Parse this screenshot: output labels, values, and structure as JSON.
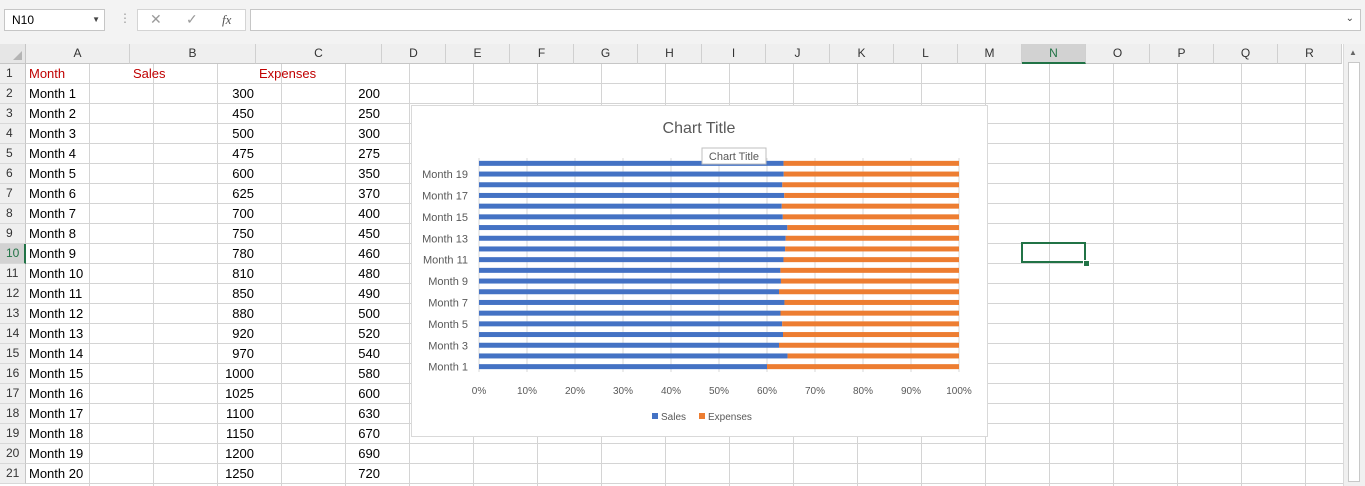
{
  "formula_bar": {
    "name_box": "N10",
    "cancel_icon": "✕",
    "enter_icon": "✓",
    "function_icon": "fx",
    "formula": ""
  },
  "columns": [
    "A",
    "B",
    "C",
    "D",
    "E",
    "F",
    "G",
    "H",
    "I",
    "J",
    "K",
    "L",
    "M",
    "N",
    "O",
    "P",
    "Q",
    "R"
  ],
  "selected_column": "N",
  "selected_row": 10,
  "rows": [
    1,
    2,
    3,
    4,
    5,
    6,
    7,
    8,
    9,
    10,
    11,
    12,
    13,
    14,
    15,
    16,
    17,
    18,
    19,
    20,
    21
  ],
  "header_color": "#c00000",
  "sheet": {
    "headers": [
      "Month",
      "Sales",
      "Expenses"
    ],
    "data": [
      [
        "Month 1",
        "300",
        "200"
      ],
      [
        "Month 2",
        "450",
        "250"
      ],
      [
        "Month 3",
        "500",
        "300"
      ],
      [
        "Month 4",
        "475",
        "275"
      ],
      [
        "Month 5",
        "600",
        "350"
      ],
      [
        "Month 6",
        "625",
        "370"
      ],
      [
        "Month 7",
        "700",
        "400"
      ],
      [
        "Month 8",
        "750",
        "450"
      ],
      [
        "Month 9",
        "780",
        "460"
      ],
      [
        "Month 10",
        "810",
        "480"
      ],
      [
        "Month 11",
        "850",
        "490"
      ],
      [
        "Month 12",
        "880",
        "500"
      ],
      [
        "Month 13",
        "920",
        "520"
      ],
      [
        "Month 14",
        "970",
        "540"
      ],
      [
        "Month 15",
        "1000",
        "580"
      ],
      [
        "Month 16",
        "1025",
        "600"
      ],
      [
        "Month 17",
        "1100",
        "630"
      ],
      [
        "Month 18",
        "1150",
        "670"
      ],
      [
        "Month 19",
        "1200",
        "690"
      ],
      [
        "Month 20",
        "1250",
        "720"
      ]
    ]
  },
  "chart_data": {
    "type": "bar",
    "orientation": "horizontal",
    "stacked": "100%",
    "title": "Chart Title",
    "tooltip": "Chart Title",
    "categories": [
      "Month 1",
      "Month 2",
      "Month 3",
      "Month 4",
      "Month 5",
      "Month 6",
      "Month 7",
      "Month 8",
      "Month 9",
      "Month 10",
      "Month 11",
      "Month 12",
      "Month 13",
      "Month 14",
      "Month 15",
      "Month 16",
      "Month 17",
      "Month 18",
      "Month 19",
      "Month 20"
    ],
    "category_labels_shown": [
      "Month 1",
      "Month 3",
      "Month 5",
      "Month 7",
      "Month 9",
      "Month 11",
      "Month 13",
      "Month 15",
      "Month 17",
      "Month 19"
    ],
    "series": [
      {
        "name": "Sales",
        "color": "#4472c4",
        "values": [
          300,
          450,
          500,
          475,
          600,
          625,
          700,
          750,
          780,
          810,
          850,
          880,
          920,
          970,
          1000,
          1025,
          1100,
          1150,
          1200,
          1250
        ]
      },
      {
        "name": "Expenses",
        "color": "#ed7d31",
        "values": [
          200,
          250,
          300,
          275,
          350,
          370,
          400,
          450,
          460,
          480,
          490,
          500,
          520,
          540,
          580,
          600,
          630,
          670,
          690,
          720
        ]
      }
    ],
    "x_ticks": [
      "0%",
      "10%",
      "20%",
      "30%",
      "40%",
      "50%",
      "60%",
      "70%",
      "80%",
      "90%",
      "100%"
    ],
    "xlim": [
      0,
      1
    ],
    "grid": true,
    "legend": "bottom"
  }
}
